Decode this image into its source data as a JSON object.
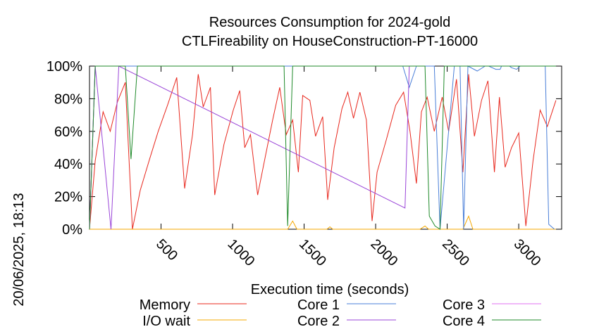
{
  "chart_data": {
    "type": "line",
    "title_line1": "Resources Consumption for 2024-gold",
    "title_line2": "CTLFireability on HouseConstruction-PT-16000",
    "xlabel": "Execution time (seconds)",
    "ylabel": "",
    "side_label": "20/06/2025, 18:13",
    "xlim": [
      0,
      3300
    ],
    "ylim": [
      0,
      100
    ],
    "xticks": [
      500,
      1000,
      1500,
      2000,
      2500,
      3000
    ],
    "xtick_labels": [
      "500",
      "1000",
      "1500",
      "2000",
      "2500",
      "3000"
    ],
    "yticks": [
      0,
      20,
      40,
      60,
      80,
      100
    ],
    "ytick_labels": [
      "0%",
      "20%",
      "40%",
      "60%",
      "80%",
      "100%"
    ],
    "legend_columns": 3,
    "series": [
      {
        "name": "Memory",
        "color": "#e8281e",
        "points": [
          [
            0,
            0
          ],
          [
            40,
            42
          ],
          [
            95,
            72
          ],
          [
            145,
            60
          ],
          [
            195,
            78
          ],
          [
            250,
            90
          ],
          [
            300,
            0
          ],
          [
            355,
            24
          ],
          [
            420,
            43
          ],
          [
            480,
            60
          ],
          [
            545,
            76
          ],
          [
            610,
            93
          ],
          [
            665,
            25
          ],
          [
            720,
            58
          ],
          [
            760,
            95
          ],
          [
            795,
            75
          ],
          [
            845,
            87
          ],
          [
            875,
            21
          ],
          [
            940,
            52
          ],
          [
            1005,
            73
          ],
          [
            1050,
            85
          ],
          [
            1085,
            50
          ],
          [
            1125,
            58
          ],
          [
            1175,
            21
          ],
          [
            1230,
            45
          ],
          [
            1280,
            67
          ],
          [
            1330,
            87
          ],
          [
            1375,
            58
          ],
          [
            1420,
            67
          ],
          [
            1460,
            35
          ],
          [
            1490,
            82
          ],
          [
            1540,
            79
          ],
          [
            1580,
            57
          ],
          [
            1630,
            69
          ],
          [
            1665,
            18
          ],
          [
            1710,
            50
          ],
          [
            1765,
            74
          ],
          [
            1805,
            84
          ],
          [
            1845,
            68
          ],
          [
            1890,
            84
          ],
          [
            1935,
            67
          ],
          [
            1975,
            5
          ],
          [
            2010,
            35
          ],
          [
            2075,
            55
          ],
          [
            2140,
            76
          ],
          [
            2195,
            84
          ],
          [
            2240,
            60
          ],
          [
            2285,
            28
          ],
          [
            2320,
            72
          ],
          [
            2360,
            81
          ],
          [
            2410,
            60
          ],
          [
            2465,
            81
          ],
          [
            2510,
            60
          ],
          [
            2565,
            92
          ],
          [
            2610,
            35
          ],
          [
            2650,
            95
          ],
          [
            2690,
            57
          ],
          [
            2740,
            79
          ],
          [
            2785,
            91
          ],
          [
            2830,
            35
          ],
          [
            2865,
            81
          ],
          [
            2905,
            38
          ],
          [
            2950,
            50
          ],
          [
            3000,
            59
          ],
          [
            3050,
            2
          ],
          [
            3100,
            42
          ],
          [
            3150,
            73
          ],
          [
            3200,
            63
          ],
          [
            3260,
            79
          ]
        ]
      },
      {
        "name": "I/O wait",
        "color": "#f5a800",
        "points": [
          [
            0,
            0
          ],
          [
            1385,
            0
          ],
          [
            1420,
            5
          ],
          [
            1450,
            0
          ],
          [
            1660,
            0
          ],
          [
            1680,
            1.5
          ],
          [
            1700,
            0
          ],
          [
            2310,
            0
          ],
          [
            2345,
            2
          ],
          [
            2370,
            0
          ],
          [
            2610,
            0
          ],
          [
            2650,
            8
          ],
          [
            2680,
            0
          ],
          [
            3260,
            0
          ]
        ]
      },
      {
        "name": "Core 1",
        "color": "#4a7fd8",
        "points": [
          [
            0,
            0
          ],
          [
            40,
            100
          ],
          [
            2190,
            100
          ],
          [
            2235,
            87
          ],
          [
            2285,
            100
          ],
          [
            2300,
            100
          ],
          [
            2330,
            100
          ],
          [
            2410,
            100
          ],
          [
            2450,
            0
          ],
          [
            2550,
            100
          ],
          [
            2590,
            100
          ],
          [
            2615,
            0
          ],
          [
            2645,
            100
          ],
          [
            2710,
            97
          ],
          [
            2765,
            100
          ],
          [
            2790,
            100
          ],
          [
            2840,
            98
          ],
          [
            2870,
            98
          ],
          [
            2880,
            100
          ],
          [
            2935,
            100
          ],
          [
            2950,
            99
          ],
          [
            2985,
            98
          ],
          [
            3010,
            100
          ],
          [
            3185,
            100
          ],
          [
            3210,
            3
          ],
          [
            3250,
            0
          ]
        ]
      },
      {
        "name": "Core 2",
        "color": "#9a45d8",
        "points": [
          [
            0,
            0
          ],
          [
            40,
            100
          ],
          [
            150,
            0
          ],
          [
            205,
            100
          ],
          [
            2205,
            13
          ],
          [
            2235,
            100
          ]
        ]
      },
      {
        "name": "Core 3",
        "color": "#e070f0",
        "points": [
          [
            0,
            0
          ],
          [
            40,
            100
          ]
        ]
      },
      {
        "name": "Core 4",
        "color": "#1f8a2a",
        "points": [
          [
            0,
            0
          ],
          [
            40,
            100
          ],
          [
            250,
            100
          ],
          [
            290,
            43
          ],
          [
            335,
            100
          ],
          [
            1360,
            100
          ],
          [
            1385,
            2
          ],
          [
            1420,
            100
          ],
          [
            2345,
            100
          ],
          [
            2375,
            8
          ],
          [
            2415,
            2
          ],
          [
            2450,
            0
          ],
          [
            2480,
            100
          ],
          [
            3260,
            100
          ]
        ]
      }
    ]
  }
}
